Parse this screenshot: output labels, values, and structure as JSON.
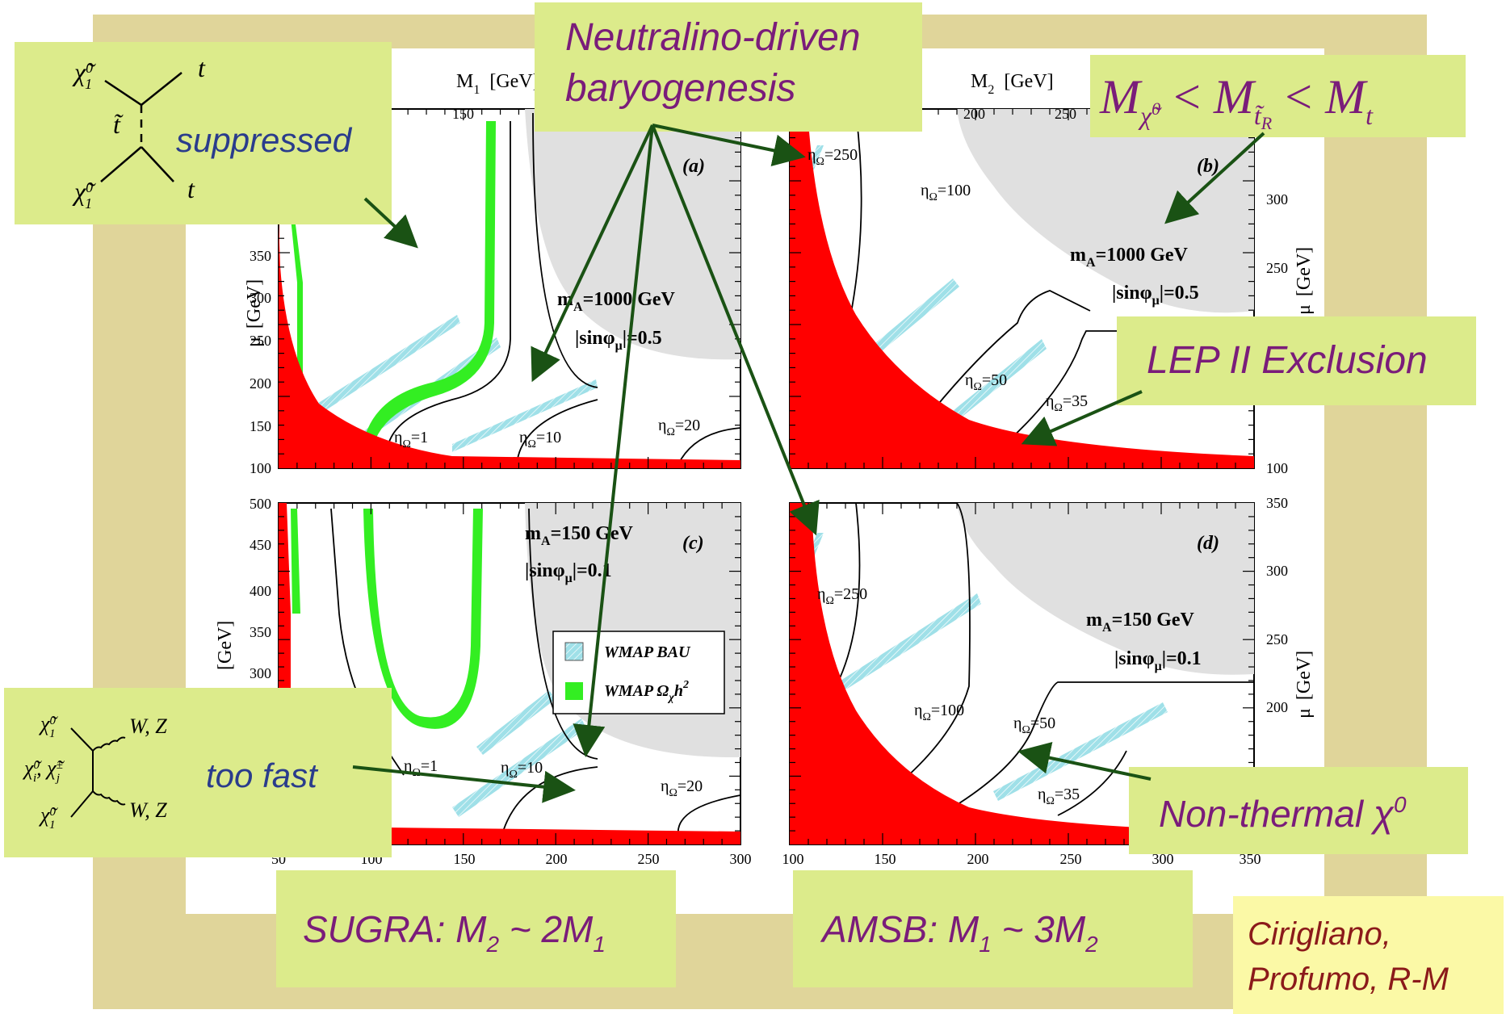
{
  "colors": {
    "frame": "#e0d59a",
    "callout_bg": "#dceb8b",
    "callout_text": "#7a1c7a",
    "blue_text": "#2a3c8c",
    "arrow": "#1a5214",
    "lep_exclusion": "#ff0000",
    "wmap_bau": "#9fe0e8",
    "wmap_omega": "#33ee22",
    "excluded_region": "#e0e0e0",
    "credit_bg": "#fbf9a6"
  },
  "callouts": {
    "neutralino": [
      "Neutralino-driven",
      "baryogenesis"
    ],
    "suppressed": "suppressed",
    "too_fast": "too fast",
    "lep": "LEP II Exclusion",
    "nonthermal": "Non-thermal χ",
    "nonthermal_sup": "0",
    "mass_relation": {
      "m": "M",
      "chi": "χ̃",
      "zero": "0",
      "lt": "<",
      "stop": "t̃",
      "R": "R",
      "t": "t"
    },
    "sugra": {
      "text": "SUGRA: M",
      "sub1": "2",
      "mid": " ~ 2M",
      "sub2": "1"
    },
    "amsb": {
      "text": "AMSB: M",
      "sub1": "1",
      "mid": " ~ 3M",
      "sub2": "2"
    },
    "credit": [
      "Cirigliano,",
      "Profumo, R-M"
    ]
  },
  "diagrams": {
    "stop_exchange": {
      "chi_top": "χ̃",
      "chi_bottom": "χ̃",
      "sup": "0",
      "sub": "1",
      "t_top": "t",
      "t_bottom": "t",
      "stop": "t̃"
    },
    "gauge_final": {
      "chi_top": "χ̃",
      "chi_bottom": "χ̃",
      "sup": "0",
      "sub": "1",
      "mid": "χ̃",
      "mid_sup": "0",
      "mid_sub": "i",
      "mid2": ", χ̃",
      "mid2_sup": "±",
      "mid2_sub": "j",
      "wz": "W, Z"
    }
  },
  "chart_data": [
    {
      "panel": "(a)",
      "type": "area",
      "top_axis": {
        "label": "M",
        "sub": "1",
        "unit": "[GeV]",
        "ticks": [
          150
        ]
      },
      "left_axis": {
        "label": "μ",
        "unit": "[GeV]",
        "ticks": [
          100,
          150,
          200,
          250,
          300,
          350
        ]
      },
      "xlim": [
        50,
        300
      ],
      "ylim": [
        100,
        460
      ],
      "annotation": [
        "m",
        "A",
        "=1000 GeV",
        "|sinφ",
        "μ",
        "|=0.5"
      ],
      "contours": [
        {
          "label": "η",
          "sub": "Ω",
          "value": "=1"
        },
        {
          "label": "η",
          "sub": "Ω",
          "value": "=10"
        },
        {
          "label": "η",
          "sub": "Ω",
          "value": "=20"
        }
      ]
    },
    {
      "panel": "(b)",
      "type": "area",
      "top_axis": {
        "label": "M",
        "sub": "2",
        "unit": "[GeV]",
        "ticks": [
          200,
          250
        ]
      },
      "right_axis": {
        "label": "μ",
        "unit": "[GeV]",
        "ticks": [
          100,
          250,
          300
        ]
      },
      "xlim": [
        100,
        350
      ],
      "ylim": [
        100,
        350
      ],
      "annotation": [
        "m",
        "A",
        "=1000 GeV",
        "|sinφ",
        "μ",
        "|=0.5"
      ],
      "contours": [
        {
          "label": "η",
          "sub": "Ω",
          "value": "=250"
        },
        {
          "label": "η",
          "sub": "Ω",
          "value": "=100"
        },
        {
          "label": "η",
          "sub": "Ω",
          "value": "=50"
        },
        {
          "label": "η",
          "sub": "Ω",
          "value": "=35"
        }
      ]
    },
    {
      "panel": "(c)",
      "type": "area",
      "bottom_axis": {
        "ticks": [
          "50",
          "100",
          "150",
          "200",
          "250",
          "300"
        ]
      },
      "left_axis": {
        "label": "[GeV]",
        "ticks": [
          300,
          350,
          400,
          450,
          500
        ]
      },
      "xlim": [
        50,
        300
      ],
      "ylim": [
        100,
        500
      ],
      "annotation": [
        "m",
        "A",
        "=150 GeV",
        "|sinφ",
        "μ",
        "|=0.1"
      ],
      "legend": [
        {
          "name": "WMAP BAU",
          "color": "#9fe0e8"
        },
        {
          "name": "WMAP Ω",
          "sub": "χ",
          "sup": "2",
          "mid": "h",
          "color": "#33ee22"
        }
      ],
      "contours": [
        {
          "label": "η",
          "sub": "Ω",
          "value": "=1"
        },
        {
          "label": "η",
          "sub": "Ω",
          "value": "=10"
        },
        {
          "label": "η",
          "sub": "Ω",
          "value": "=20"
        }
      ]
    },
    {
      "panel": "(d)",
      "type": "area",
      "bottom_axis": {
        "ticks": [
          "100",
          "150",
          "200",
          "250",
          "300",
          "350"
        ]
      },
      "right_axis": {
        "label": "μ",
        "unit": "[GeV]",
        "ticks": [
          200,
          250,
          300,
          350
        ]
      },
      "xlim": [
        100,
        350
      ],
      "ylim": [
        100,
        350
      ],
      "annotation": [
        "m",
        "A",
        "=150 GeV",
        "|sinφ",
        "μ",
        "|=0.1"
      ],
      "contours": [
        {
          "label": "η",
          "sub": "Ω",
          "value": "=250"
        },
        {
          "label": "η",
          "sub": "Ω",
          "value": "=100"
        },
        {
          "label": "η",
          "sub": "Ω",
          "value": "=50"
        },
        {
          "label": "η",
          "sub": "Ω",
          "value": "=35"
        }
      ]
    }
  ]
}
